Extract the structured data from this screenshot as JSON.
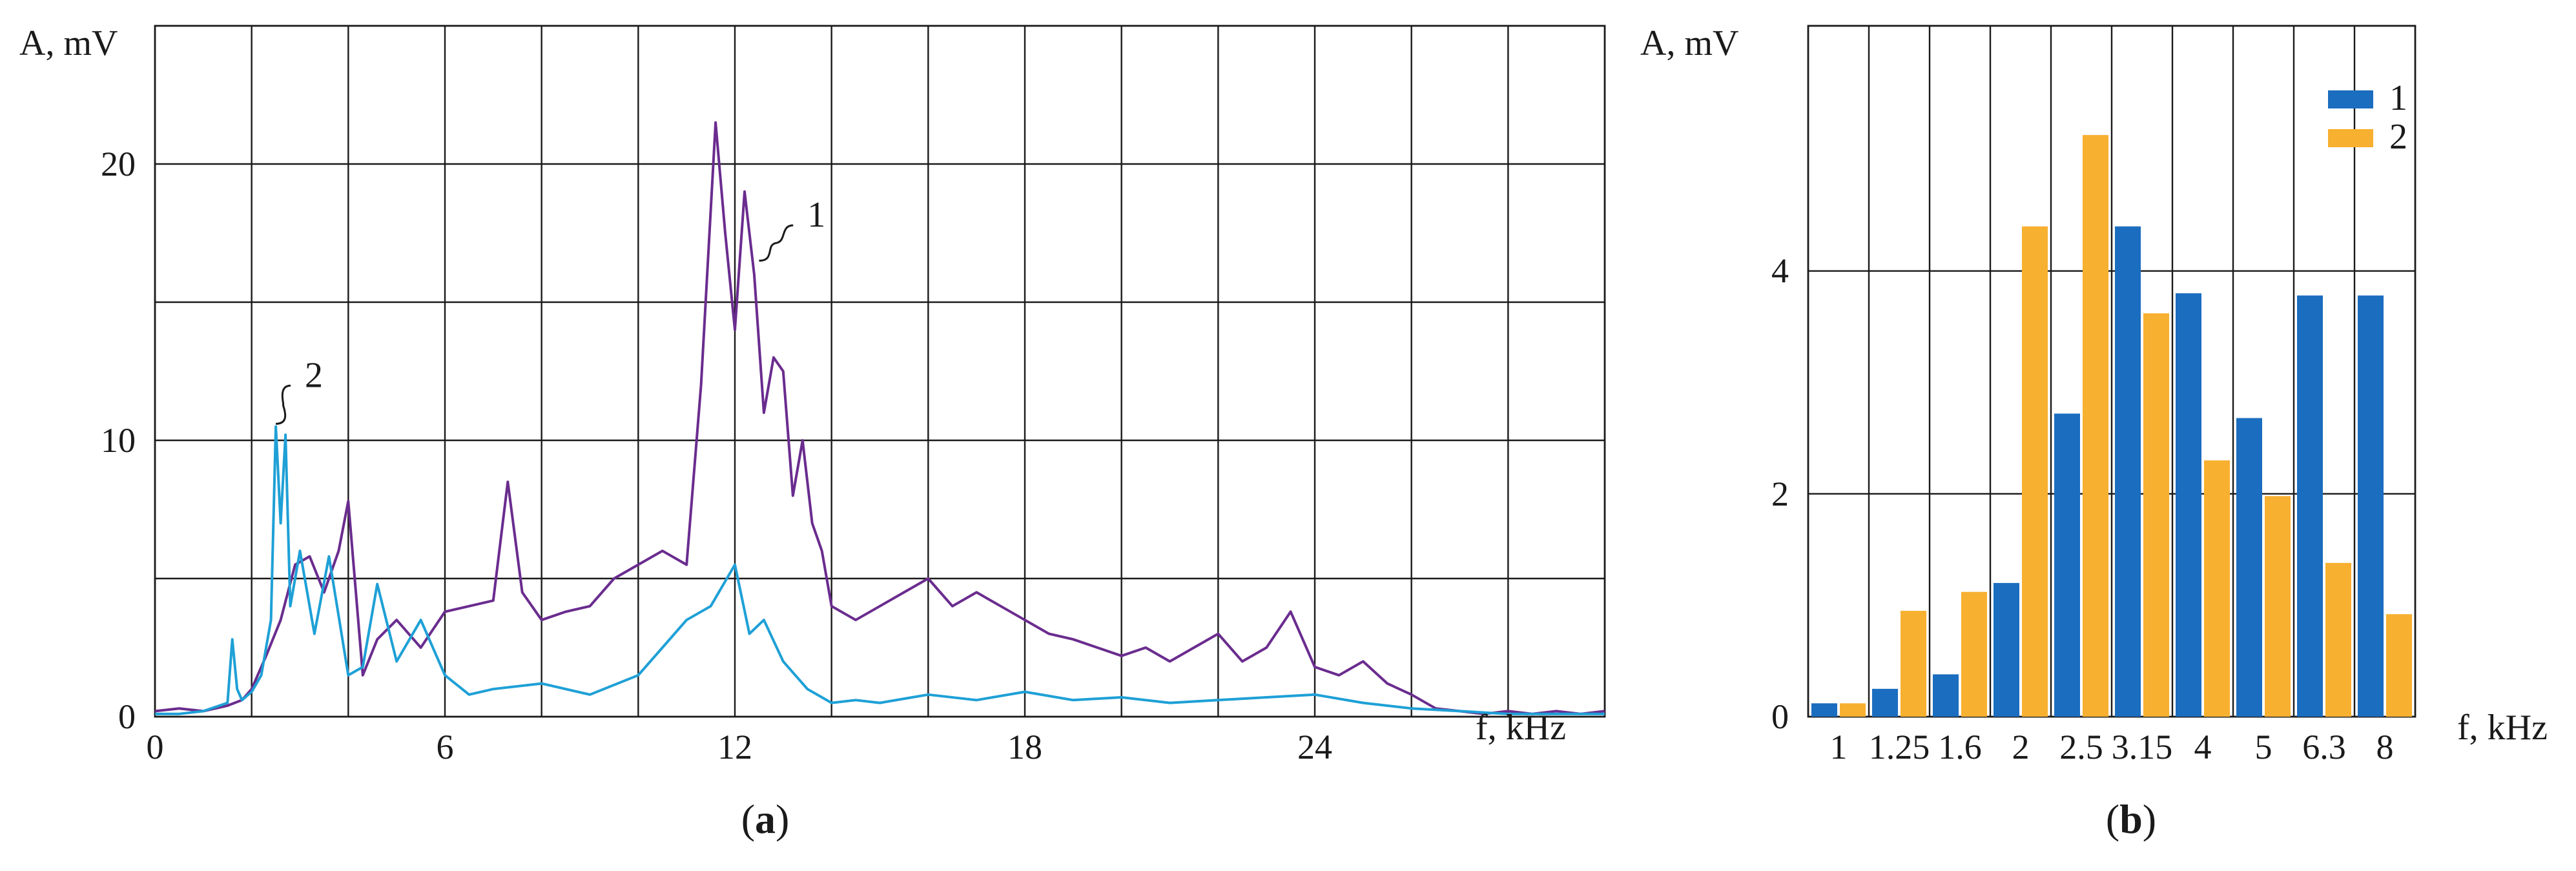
{
  "figure": {
    "panel_a_label": [
      "(",
      "a",
      ")"
    ],
    "panel_b_label": [
      "(",
      "b",
      ")"
    ]
  },
  "chart_data": [
    {
      "type": "line",
      "panel": "a",
      "xlabel": "f, kHz",
      "ylabel": "A, mV",
      "xlim": [
        0,
        30
      ],
      "ylim": [
        0,
        25
      ],
      "xticks": [
        "0",
        "6",
        "12",
        "18",
        "24"
      ],
      "xtick_values": [
        0,
        6,
        12,
        18,
        24
      ],
      "yticks": [
        "0",
        "10",
        "20"
      ],
      "ytick_values": [
        0,
        10,
        20
      ],
      "grid": true,
      "annotations": [
        "1",
        "2"
      ],
      "series": [
        {
          "name": "1",
          "color": "#6a2c8e",
          "x": [
            0,
            0.5,
            1,
            1.5,
            1.8,
            2,
            2.3,
            2.6,
            2.9,
            3.2,
            3.5,
            3.8,
            4,
            4.3,
            4.6,
            5,
            5.5,
            6,
            6.5,
            7,
            7.3,
            7.6,
            8,
            8.5,
            9,
            9.5,
            10,
            10.5,
            11,
            11.3,
            11.6,
            11.8,
            12,
            12.2,
            12.4,
            12.6,
            12.8,
            13,
            13.2,
            13.4,
            13.6,
            13.8,
            14,
            14.5,
            15,
            15.5,
            16,
            16.5,
            17,
            17.5,
            18,
            18.5,
            19,
            19.5,
            20,
            20.5,
            21,
            21.5,
            22,
            22.5,
            23,
            23.5,
            24,
            24.5,
            25,
            25.5,
            26,
            26.5,
            27,
            27.5,
            28,
            28.5,
            29,
            29.5,
            30
          ],
          "values": [
            0.2,
            0.3,
            0.2,
            0.4,
            0.6,
            1.0,
            2.2,
            3.5,
            5.5,
            5.8,
            4.5,
            6.0,
            7.8,
            1.5,
            2.8,
            3.5,
            2.5,
            3.8,
            4.0,
            4.2,
            8.5,
            4.5,
            3.5,
            3.8,
            4.0,
            5.0,
            5.5,
            6.0,
            5.5,
            12.0,
            21.5,
            17.5,
            14.0,
            19.0,
            16.0,
            11.0,
            13.0,
            12.5,
            8.0,
            10.0,
            7.0,
            6.0,
            4.0,
            3.5,
            4.0,
            4.5,
            5.0,
            4.0,
            4.5,
            4.0,
            3.5,
            3.0,
            2.8,
            2.5,
            2.2,
            2.5,
            2.0,
            2.5,
            3.0,
            2.0,
            2.5,
            3.8,
            1.8,
            1.5,
            2.0,
            1.2,
            0.8,
            0.3,
            0.2,
            0.1,
            0.2,
            0.1,
            0.2,
            0.1,
            0.2
          ]
        },
        {
          "name": "2",
          "color": "#1ea0d6",
          "x": [
            0,
            0.5,
            1,
            1.5,
            1.6,
            1.7,
            1.8,
            2,
            2.2,
            2.4,
            2.5,
            2.6,
            2.7,
            2.8,
            3.0,
            3.3,
            3.6,
            4,
            4.3,
            4.6,
            5,
            5.5,
            6,
            6.5,
            7,
            8,
            9,
            10,
            10.5,
            11,
            11.5,
            12,
            12.3,
            12.6,
            13,
            13.5,
            14,
            14.5,
            15,
            16,
            17,
            18,
            19,
            20,
            21,
            22,
            23,
            24,
            25,
            26,
            27,
            28,
            29,
            30
          ],
          "values": [
            0.1,
            0.1,
            0.2,
            0.5,
            2.8,
            1.0,
            0.6,
            0.9,
            1.5,
            3.5,
            10.5,
            7.0,
            10.2,
            4.0,
            6.0,
            3.0,
            5.8,
            1.5,
            1.8,
            4.8,
            2.0,
            3.5,
            1.5,
            0.8,
            1.0,
            1.2,
            0.8,
            1.5,
            2.5,
            3.5,
            4.0,
            5.5,
            3.0,
            3.5,
            2.0,
            1.0,
            0.5,
            0.6,
            0.5,
            0.8,
            0.6,
            0.9,
            0.6,
            0.7,
            0.5,
            0.6,
            0.7,
            0.8,
            0.5,
            0.3,
            0.2,
            0.1,
            0.1,
            0.1
          ]
        }
      ]
    },
    {
      "type": "bar",
      "panel": "b",
      "xlabel": "f, kHz",
      "ylabel": "A, mV",
      "ylim": [
        0,
        6.2
      ],
      "yticks": [
        "0",
        "2",
        "4"
      ],
      "ytick_values": [
        0,
        2,
        4
      ],
      "grid": true,
      "legend": "top-right",
      "categories": [
        "1",
        "1.25",
        "1.6",
        "2",
        "2.5",
        "3.15",
        "4",
        "5",
        "6.3",
        "8"
      ],
      "series": [
        {
          "name": "1",
          "color": "#1b6dbf",
          "values": [
            0.12,
            0.25,
            0.38,
            1.2,
            2.72,
            4.4,
            3.8,
            2.68,
            3.78,
            3.78
          ]
        },
        {
          "name": "2",
          "color": "#f7b030",
          "values": [
            0.12,
            0.95,
            1.12,
            4.4,
            5.22,
            3.62,
            2.3,
            1.98,
            1.38,
            0.92
          ]
        }
      ]
    }
  ]
}
